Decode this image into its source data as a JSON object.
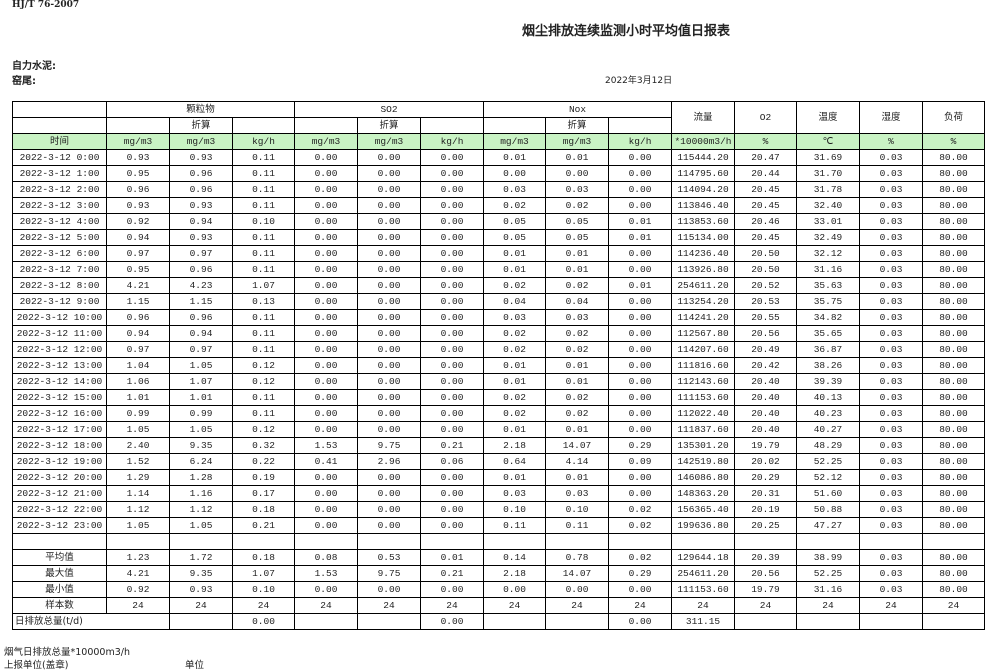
{
  "standard": "HJ/T  76-2007",
  "title": "烟尘排放连续监测小时平均值日报表",
  "company": "自力水泥:",
  "kiln": "窑尾:",
  "date": "2022年3月12日",
  "header": {
    "groups": [
      "颗粒物",
      "SO2",
      "Nox"
    ],
    "converted": "折算",
    "single": [
      "流量",
      "O2",
      "温度",
      "湿度",
      "负荷"
    ],
    "time_label": "时间",
    "units": [
      "mg/m3",
      "mg/m3",
      "kg/h",
      "mg/m3",
      "mg/m3",
      "kg/h",
      "mg/m3",
      "mg/m3",
      "kg/h",
      "*10000m3/h",
      "%",
      "℃",
      "%",
      "%"
    ]
  },
  "rows": [
    [
      "2022-3-12 0:00",
      "0.93",
      "0.93",
      "0.11",
      "0.00",
      "0.00",
      "0.00",
      "0.01",
      "0.01",
      "0.00",
      "115444.20",
      "20.47",
      "31.69",
      "0.03",
      "80.00"
    ],
    [
      "2022-3-12 1:00",
      "0.95",
      "0.96",
      "0.11",
      "0.00",
      "0.00",
      "0.00",
      "0.00",
      "0.00",
      "0.00",
      "114795.60",
      "20.44",
      "31.70",
      "0.03",
      "80.00"
    ],
    [
      "2022-3-12 2:00",
      "0.96",
      "0.96",
      "0.11",
      "0.00",
      "0.00",
      "0.00",
      "0.03",
      "0.03",
      "0.00",
      "114094.20",
      "20.45",
      "31.78",
      "0.03",
      "80.00"
    ],
    [
      "2022-3-12 3:00",
      "0.93",
      "0.93",
      "0.11",
      "0.00",
      "0.00",
      "0.00",
      "0.02",
      "0.02",
      "0.00",
      "113846.40",
      "20.45",
      "32.40",
      "0.03",
      "80.00"
    ],
    [
      "2022-3-12 4:00",
      "0.92",
      "0.94",
      "0.10",
      "0.00",
      "0.00",
      "0.00",
      "0.05",
      "0.05",
      "0.01",
      "113853.60",
      "20.46",
      "33.01",
      "0.03",
      "80.00"
    ],
    [
      "2022-3-12 5:00",
      "0.94",
      "0.93",
      "0.11",
      "0.00",
      "0.00",
      "0.00",
      "0.05",
      "0.05",
      "0.01",
      "115134.00",
      "20.45",
      "32.49",
      "0.03",
      "80.00"
    ],
    [
      "2022-3-12 6:00",
      "0.97",
      "0.97",
      "0.11",
      "0.00",
      "0.00",
      "0.00",
      "0.01",
      "0.01",
      "0.00",
      "114236.40",
      "20.50",
      "32.12",
      "0.03",
      "80.00"
    ],
    [
      "2022-3-12 7:00",
      "0.95",
      "0.96",
      "0.11",
      "0.00",
      "0.00",
      "0.00",
      "0.01",
      "0.01",
      "0.00",
      "113926.80",
      "20.50",
      "31.16",
      "0.03",
      "80.00"
    ],
    [
      "2022-3-12 8:00",
      "4.21",
      "4.23",
      "1.07",
      "0.00",
      "0.00",
      "0.00",
      "0.02",
      "0.02",
      "0.01",
      "254611.20",
      "20.52",
      "35.63",
      "0.03",
      "80.00"
    ],
    [
      "2022-3-12 9:00",
      "1.15",
      "1.15",
      "0.13",
      "0.00",
      "0.00",
      "0.00",
      "0.04",
      "0.04",
      "0.00",
      "113254.20",
      "20.53",
      "35.75",
      "0.03",
      "80.00"
    ],
    [
      "2022-3-12 10:00",
      "0.96",
      "0.96",
      "0.11",
      "0.00",
      "0.00",
      "0.00",
      "0.03",
      "0.03",
      "0.00",
      "114241.20",
      "20.55",
      "34.82",
      "0.03",
      "80.00"
    ],
    [
      "2022-3-12 11:00",
      "0.94",
      "0.94",
      "0.11",
      "0.00",
      "0.00",
      "0.00",
      "0.02",
      "0.02",
      "0.00",
      "112567.80",
      "20.56",
      "35.65",
      "0.03",
      "80.00"
    ],
    [
      "2022-3-12 12:00",
      "0.97",
      "0.97",
      "0.11",
      "0.00",
      "0.00",
      "0.00",
      "0.02",
      "0.02",
      "0.00",
      "114207.60",
      "20.49",
      "36.87",
      "0.03",
      "80.00"
    ],
    [
      "2022-3-12 13:00",
      "1.04",
      "1.05",
      "0.12",
      "0.00",
      "0.00",
      "0.00",
      "0.01",
      "0.01",
      "0.00",
      "111816.60",
      "20.42",
      "38.26",
      "0.03",
      "80.00"
    ],
    [
      "2022-3-12 14:00",
      "1.06",
      "1.07",
      "0.12",
      "0.00",
      "0.00",
      "0.00",
      "0.01",
      "0.01",
      "0.00",
      "112143.60",
      "20.40",
      "39.39",
      "0.03",
      "80.00"
    ],
    [
      "2022-3-12 15:00",
      "1.01",
      "1.01",
      "0.11",
      "0.00",
      "0.00",
      "0.00",
      "0.02",
      "0.02",
      "0.00",
      "111153.60",
      "20.40",
      "40.13",
      "0.03",
      "80.00"
    ],
    [
      "2022-3-12 16:00",
      "0.99",
      "0.99",
      "0.11",
      "0.00",
      "0.00",
      "0.00",
      "0.02",
      "0.02",
      "0.00",
      "112022.40",
      "20.40",
      "40.23",
      "0.03",
      "80.00"
    ],
    [
      "2022-3-12 17:00",
      "1.05",
      "1.05",
      "0.12",
      "0.00",
      "0.00",
      "0.00",
      "0.01",
      "0.01",
      "0.00",
      "111837.60",
      "20.40",
      "40.27",
      "0.03",
      "80.00"
    ],
    [
      "2022-3-12 18:00",
      "2.40",
      "9.35",
      "0.32",
      "1.53",
      "9.75",
      "0.21",
      "2.18",
      "14.07",
      "0.29",
      "135301.20",
      "19.79",
      "48.29",
      "0.03",
      "80.00"
    ],
    [
      "2022-3-12 19:00",
      "1.52",
      "6.24",
      "0.22",
      "0.41",
      "2.96",
      "0.06",
      "0.64",
      "4.14",
      "0.09",
      "142519.80",
      "20.02",
      "52.25",
      "0.03",
      "80.00"
    ],
    [
      "2022-3-12 20:00",
      "1.29",
      "1.28",
      "0.19",
      "0.00",
      "0.00",
      "0.00",
      "0.01",
      "0.01",
      "0.00",
      "146086.80",
      "20.29",
      "52.12",
      "0.03",
      "80.00"
    ],
    [
      "2022-3-12 21:00",
      "1.14",
      "1.16",
      "0.17",
      "0.00",
      "0.00",
      "0.00",
      "0.03",
      "0.03",
      "0.00",
      "148363.20",
      "20.31",
      "51.60",
      "0.03",
      "80.00"
    ],
    [
      "2022-3-12 22:00",
      "1.12",
      "1.12",
      "0.18",
      "0.00",
      "0.00",
      "0.00",
      "0.10",
      "0.10",
      "0.02",
      "156365.40",
      "20.19",
      "50.88",
      "0.03",
      "80.00"
    ],
    [
      "2022-3-12 23:00",
      "1.05",
      "1.05",
      "0.21",
      "0.00",
      "0.00",
      "0.00",
      "0.11",
      "0.11",
      "0.02",
      "199636.80",
      "20.25",
      "47.27",
      "0.03",
      "80.00"
    ]
  ],
  "stats": [
    [
      "平均值",
      "1.23",
      "1.72",
      "0.18",
      "0.08",
      "0.53",
      "0.01",
      "0.14",
      "0.78",
      "0.02",
      "129644.18",
      "20.39",
      "38.99",
      "0.03",
      "80.00"
    ],
    [
      "最大值",
      "4.21",
      "9.35",
      "1.07",
      "1.53",
      "9.75",
      "0.21",
      "2.18",
      "14.07",
      "0.29",
      "254611.20",
      "20.56",
      "52.25",
      "0.03",
      "80.00"
    ],
    [
      "最小值",
      "0.92",
      "0.93",
      "0.10",
      "0.00",
      "0.00",
      "0.00",
      "0.00",
      "0.00",
      "0.00",
      "111153.60",
      "19.79",
      "31.16",
      "0.03",
      "80.00"
    ],
    [
      "样本数",
      "24",
      "24",
      "24",
      "24",
      "24",
      "24",
      "24",
      "24",
      "24",
      "24",
      "24",
      "24",
      "24",
      "24"
    ]
  ],
  "daily_total": {
    "label": "日排放总量(t/d)",
    "particulate_kgh": "0.00",
    "so2_kgh": "0.00",
    "nox_kgh": "0.00",
    "flow": "311.15"
  },
  "footer": {
    "flue_gas_total": "烟气日排放总量*10000m3/h",
    "reporting_unit": "上报单位(盖章)",
    "unit": "单位"
  }
}
